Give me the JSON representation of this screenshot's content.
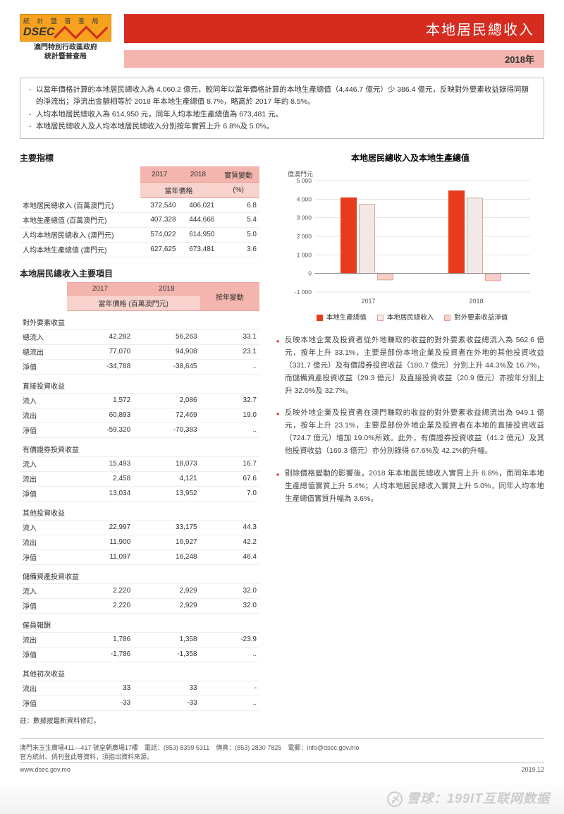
{
  "logo": {
    "top": "統 計 暨 普 查 局",
    "main": "DSEC",
    "sub1": "澳門特別行政區政府",
    "sub2": "統計暨普查局"
  },
  "header": {
    "title": "本地居民總收入",
    "year": "2018年"
  },
  "summary": [
    "以當年價格計算的本地居民總收入為 4,060.2 億元，較同年以當年價格計算的本地生產總值（4,446.7 億元）少 386.4 億元，反映對外要素收益錄得同額的淨流出；淨流出金額相等於 2018 年本地生產總值 8.7%，略高於 2017 年的 8.5%。",
    "人均本地居民總收入為 614,950 元，同年人均本地生產總值為 673,481 元。",
    "本地居民總收入及人均本地居民總收入分別按年實質上升 6.8%及 5.0%。"
  ],
  "indicators": {
    "heading": "主要指標",
    "col_2017": "2017",
    "col_2018": "2018",
    "col_change": "實質變動",
    "sub_price": "當年價格",
    "unit_pct": "(%)",
    "rows": [
      {
        "label": "本地居民總收入 (百萬澳門元)",
        "y17": "372,540",
        "y18": "406,021",
        "chg": "6.8"
      },
      {
        "label": "本地生產總值 (百萬澳門元)",
        "y17": "407,328",
        "y18": "444,666",
        "chg": "5.4"
      },
      {
        "label": "人均本地居民總收入 (澳門元)",
        "y17": "574,022",
        "y18": "614,950",
        "chg": "5.0"
      },
      {
        "label": "人均本地生產總值 (澳門元)",
        "y17": "627,625",
        "y18": "673,481",
        "chg": "3.6"
      }
    ]
  },
  "components": {
    "heading": "本地居民總收入主要項目",
    "col_2017": "2017",
    "col_2018": "2018",
    "col_change": "按年變動",
    "sub_price": "當年價格 (百萬澳門元)",
    "unit_pct": "(%)",
    "groups": [
      {
        "title": "對外要素收益",
        "rows": [
          {
            "label": "總流入",
            "y17": "42,282",
            "y18": "56,263",
            "chg": "33.1"
          },
          {
            "label": "總流出",
            "y17": "77,070",
            "y18": "94,908",
            "chg": "23.1"
          },
          {
            "label": "淨值",
            "y17": "-34,788",
            "y18": "-38,645",
            "chg": ".."
          }
        ]
      },
      {
        "title": "直接投資收益",
        "rows": [
          {
            "label": "流入",
            "y17": "1,572",
            "y18": "2,086",
            "chg": "32.7"
          },
          {
            "label": "流出",
            "y17": "60,893",
            "y18": "72,469",
            "chg": "19.0"
          },
          {
            "label": "淨值",
            "y17": "-59,320",
            "y18": "-70,383",
            "chg": ".."
          }
        ]
      },
      {
        "title": "有價證券投資收益",
        "rows": [
          {
            "label": "流入",
            "y17": "15,493",
            "y18": "18,073",
            "chg": "16.7"
          },
          {
            "label": "流出",
            "y17": "2,458",
            "y18": "4,121",
            "chg": "67.6"
          },
          {
            "label": "淨值",
            "y17": "13,034",
            "y18": "13,952",
            "chg": "7.0"
          }
        ]
      },
      {
        "title": "其他投資收益",
        "rows": [
          {
            "label": "流入",
            "y17": "22,997",
            "y18": "33,175",
            "chg": "44.3"
          },
          {
            "label": "流出",
            "y17": "11,900",
            "y18": "16,927",
            "chg": "42.2"
          },
          {
            "label": "淨值",
            "y17": "11,097",
            "y18": "16,248",
            "chg": "46.4"
          }
        ]
      },
      {
        "title": "儲備資產投資收益",
        "rows": [
          {
            "label": "流入",
            "y17": "2,220",
            "y18": "2,929",
            "chg": "32.0"
          },
          {
            "label": "淨值",
            "y17": "2,220",
            "y18": "2,929",
            "chg": "32.0"
          }
        ]
      },
      {
        "title": "僱員報酬",
        "rows": [
          {
            "label": "流出",
            "y17": "1,786",
            "y18": "1,358",
            "chg": "-23.9"
          },
          {
            "label": "淨值",
            "y17": "-1,786",
            "y18": "-1,358",
            "chg": ".."
          }
        ]
      },
      {
        "title": "其他初次收益",
        "rows": [
          {
            "label": "流出",
            "y17": "33",
            "y18": "33",
            "chg": "-"
          },
          {
            "label": "淨值",
            "y17": "-33",
            "y18": "-33",
            "chg": ".."
          }
        ]
      }
    ],
    "note": "註：數據按最新資料修訂。"
  },
  "chart": {
    "title": "本地居民總收入及本地生產總值",
    "y_unit": "億澳門元",
    "y_ticks": [
      "-1 000",
      "0",
      "1 000",
      "2 000",
      "3 000",
      "4 000",
      "5 000"
    ],
    "categories": [
      "2017",
      "2018"
    ],
    "series": [
      {
        "name": "本地生產總值",
        "color": "#e83b1c",
        "values": [
          4073,
          4447
        ]
      },
      {
        "name": "本地居民總收入",
        "color": "#f2e9e7",
        "border": "#d9a79c",
        "values": [
          3725,
          4060
        ]
      },
      {
        "name": "對外要素收益淨值",
        "color": "#f7cfc8",
        "border": "#e3a097",
        "values": [
          -348,
          -386
        ]
      }
    ],
    "background": "#ffffff",
    "grid": "#cccccc",
    "ymin": -1000,
    "ymax": 5000
  },
  "analysis": [
    "反映本地企業及投資者從外地賺取的收益的對外要素收益總流入為 562.6 億元，按年上升 33.1%，主要是部份本地企業及投資者在外地的其他投資收益（331.7 億元）及有價證券投資收益（180.7 億元）分別上升 44.3%及 16.7%，而儲備資產投資收益（29.3 億元）及直接投資收益（20.9 億元）亦按年分別上升 32.0%及 32.7%。",
    "反映外地企業及投資者在澳門賺取的收益的對外要素收益總流出為 949.1 億元，按年上升 23.1%，主要是部份外地企業及投資者在本地的直接投資收益（724.7 億元）增加 19.0%所致。此外，有價證券投資收益（41.2 億元）及其他投資收益（169.3 億元）亦分別錄得 67.6%及 42.2%的升幅。",
    "剔除價格變動的影響後，2018 年本地居民總收入實質上升 6.8%，而同年本地生產總值實質上升 5.4%；人均本地居民總收入實質上升 5.0%，同年人均本地生產總值實質升幅為 3.6%。"
  ],
  "footer": {
    "addr": "澳門宋玉生廣場411—417 號皇朝廣場17樓　電話：(853) 8399 5311　傳真：(853) 2830 7825　電郵：info@dsec.gov.mo",
    "src": "官方統計。倘刊登此等資料，須指出資料來源。",
    "url": "www.dsec.gov.mo",
    "date": "2019.12"
  },
  "watermark": "雪球：199IT互联网数据"
}
